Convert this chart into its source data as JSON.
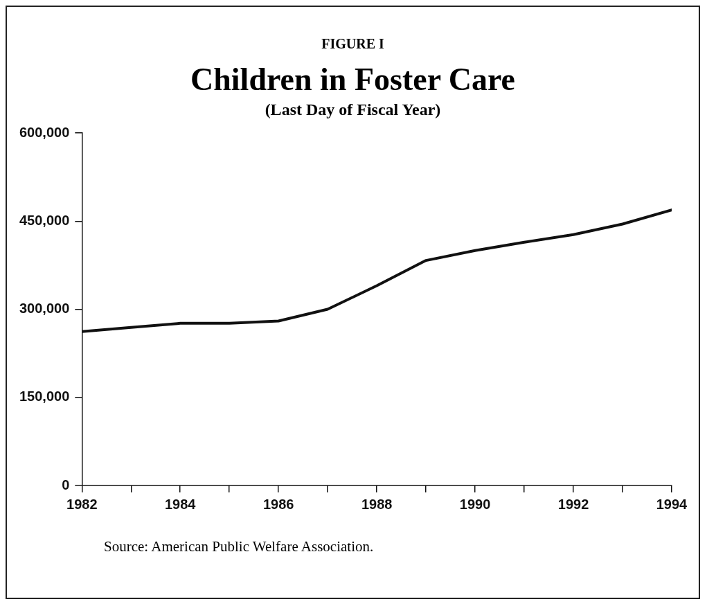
{
  "chart_data": {
    "type": "line",
    "title": "Children in Foster Care",
    "subtitle": "(Last Day of Fiscal Year)",
    "annotations": [
      "FIGURE I",
      "Source:  American Public Welfare Association."
    ],
    "x": [
      1982,
      1983,
      1984,
      1985,
      1986,
      1987,
      1988,
      1989,
      1990,
      1991,
      1992,
      1993,
      1994
    ],
    "series": [
      {
        "color": "#111111",
        "values": [
          262000,
          269000,
          276000,
          276000,
          280000,
          300000,
          340000,
          383000,
          400000,
          414000,
          427000,
          445000,
          469000
        ]
      }
    ],
    "xlim": [
      1982,
      1994
    ],
    "xticks": [
      1982,
      {
        "value": 1983,
        "label": null
      },
      1984,
      {
        "value": 1985,
        "label": null
      },
      1986,
      {
        "value": 1987,
        "label": null
      },
      1988,
      {
        "value": 1989,
        "label": null
      },
      1990,
      {
        "value": 1991,
        "label": null
      },
      1992,
      {
        "value": 1993,
        "label": null
      },
      1994
    ],
    "ylim": [
      0,
      600000
    ],
    "yticks": [
      {
        "value": 0,
        "label": "0"
      },
      {
        "value": 150000,
        "label": "150,000"
      },
      {
        "value": 300000,
        "label": "300,000"
      },
      {
        "value": 450000,
        "label": "450,000"
      },
      {
        "value": 600000,
        "label": "600,000"
      }
    ],
    "grid": false,
    "legend": false,
    "marker": "none",
    "line_style": "solid"
  }
}
